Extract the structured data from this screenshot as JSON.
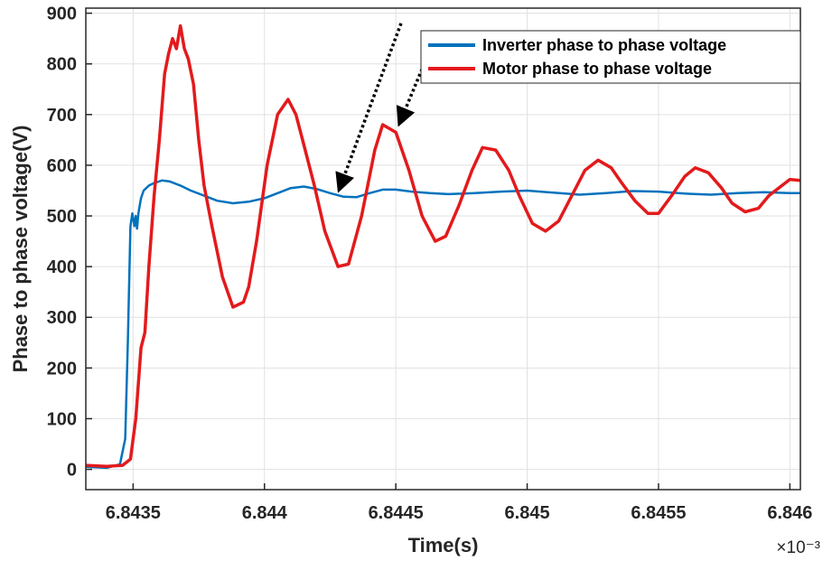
{
  "chart_data": {
    "type": "line",
    "xlabel": "Time(s)",
    "ylabel": "Phase to phase voltage(V)",
    "x_exponent_label": "×10⁻³",
    "xlim": [
      6.84332,
      6.84604
    ],
    "ylim": [
      -40,
      910
    ],
    "grid": true,
    "legend_position": "top-right",
    "x_ticks": [
      6.8435,
      6.844,
      6.8445,
      6.845,
      6.8455,
      6.846
    ],
    "x_tick_labels": [
      "6.8435",
      "6.844",
      "6.8445",
      "6.845",
      "6.8455",
      "6.846"
    ],
    "y_ticks": [
      0,
      100,
      200,
      300,
      400,
      500,
      600,
      700,
      800,
      900
    ],
    "y_tick_labels": [
      "0",
      "100",
      "200",
      "300",
      "400",
      "500",
      "600",
      "700",
      "800",
      "900"
    ],
    "series": [
      {
        "name": "Inverter phase to phase voltage",
        "color": "#0072BD",
        "x": [
          6.84332,
          6.8434,
          6.84345,
          6.84347,
          6.84348,
          6.84349,
          6.843497,
          6.843505,
          6.84351,
          6.843515,
          6.84352,
          6.843525,
          6.84353,
          6.84354,
          6.84355,
          6.84356,
          6.84358,
          6.84361,
          6.84364,
          6.84368,
          6.84372,
          6.84377,
          6.84382,
          6.84388,
          6.84394,
          6.844,
          6.84405,
          6.8441,
          6.84415,
          6.8442,
          6.84425,
          6.8443,
          6.84435,
          6.8444,
          6.84445,
          6.8445,
          6.84456,
          6.84463,
          6.8447,
          6.8448,
          6.8449,
          6.845,
          6.8451,
          6.8452,
          6.8453,
          6.8454,
          6.8455,
          6.8456,
          6.8457,
          6.8458,
          6.8459,
          6.846,
          6.84604
        ],
        "values": [
          5,
          3,
          10,
          60,
          250,
          480,
          505,
          480,
          500,
          475,
          505,
          520,
          535,
          550,
          555,
          560,
          565,
          570,
          568,
          560,
          550,
          540,
          530,
          525,
          528,
          535,
          545,
          555,
          558,
          553,
          545,
          538,
          537,
          545,
          552,
          552,
          548,
          545,
          543,
          545,
          548,
          550,
          546,
          542,
          545,
          549,
          548,
          544,
          542,
          545,
          547,
          545,
          545
        ]
      },
      {
        "name": "Motor phase to phase voltage",
        "color": "#E31A1C",
        "x": [
          6.84332,
          6.8434,
          6.84346,
          6.84349,
          6.84351,
          6.84353,
          6.843545,
          6.84356,
          6.84358,
          6.8436,
          6.84362,
          6.843635,
          6.84365,
          6.843665,
          6.84368,
          6.843695,
          6.84371,
          6.84373,
          6.84375,
          6.84377,
          6.8438,
          6.84384,
          6.84388,
          6.84392,
          6.84394,
          6.84397,
          6.84401,
          6.84405,
          6.84409,
          6.84412,
          6.84415,
          6.84419,
          6.84423,
          6.84428,
          6.84432,
          6.84437,
          6.84442,
          6.84445,
          6.8445,
          6.84455,
          6.8446,
          6.84465,
          6.84469,
          6.84474,
          6.84479,
          6.84483,
          6.84488,
          6.84493,
          6.84497,
          6.84502,
          6.84507,
          6.84512,
          6.84517,
          6.84522,
          6.84527,
          6.84532,
          6.84536,
          6.84541,
          6.84546,
          6.8455,
          6.84555,
          6.8456,
          6.84564,
          6.84569,
          6.84574,
          6.84578,
          6.84583,
          6.84588,
          6.84592,
          6.84597,
          6.846,
          6.84604
        ],
        "values": [
          8,
          6,
          8,
          20,
          100,
          240,
          270,
          400,
          540,
          650,
          780,
          820,
          850,
          830,
          875,
          830,
          810,
          760,
          650,
          560,
          480,
          380,
          320,
          330,
          360,
          450,
          600,
          700,
          730,
          700,
          640,
          560,
          470,
          400,
          405,
          500,
          630,
          680,
          665,
          590,
          500,
          450,
          460,
          520,
          590,
          635,
          630,
          590,
          540,
          485,
          470,
          490,
          540,
          590,
          610,
          595,
          565,
          530,
          505,
          505,
          540,
          578,
          595,
          585,
          555,
          525,
          508,
          515,
          540,
          560,
          572,
          570
        ]
      }
    ],
    "legend": [
      {
        "label": "Inverter phase to phase voltage",
        "color": "#0072BD"
      },
      {
        "label": "Motor phase to phase voltage",
        "color": "#E31A1C"
      }
    ],
    "annotations": [
      {
        "type": "dotted-arrow",
        "from": [
          6.84452,
          880
        ],
        "to": [
          6.84429,
          560
        ]
      },
      {
        "type": "dotted-arrow",
        "from": [
          6.8446,
          790
        ],
        "to": [
          6.84452,
          690
        ]
      }
    ]
  }
}
